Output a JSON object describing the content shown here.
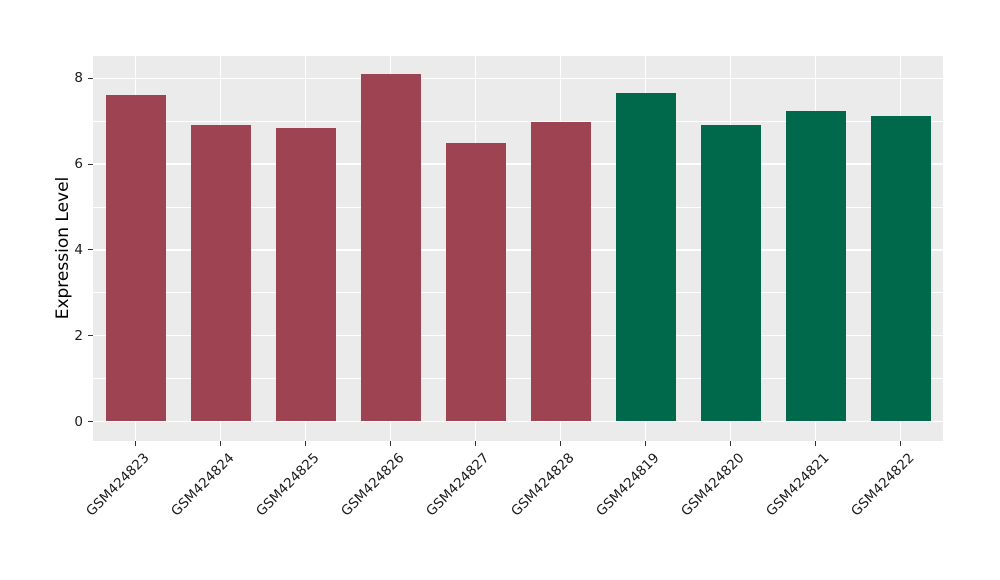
{
  "chart_data": {
    "type": "bar",
    "title": "",
    "xlabel": "",
    "ylabel": "Expression Level",
    "categories": [
      "GSM424823",
      "GSM424824",
      "GSM424825",
      "GSM424826",
      "GSM424827",
      "GSM424828",
      "GSM424819",
      "GSM424820",
      "GSM424821",
      "GSM424822"
    ],
    "values": [
      7.62,
      6.9,
      6.85,
      8.1,
      6.49,
      6.99,
      7.66,
      6.9,
      7.23,
      7.12
    ],
    "bar_colors": [
      "#9E4352",
      "#9E4352",
      "#9E4352",
      "#9E4352",
      "#9E4352",
      "#9E4352",
      "#00684B",
      "#00684B",
      "#00684B",
      "#00684B"
    ],
    "group_colors": {
      "left_group": "#9E4352",
      "right_group": "#00684B"
    },
    "ylim": [
      0,
      8.52
    ],
    "yticks": [
      0,
      2,
      4,
      6,
      8
    ],
    "yticks_minor": [
      1,
      3,
      5,
      7
    ],
    "grid": "on",
    "legend": "none",
    "x_label_rotation_deg": 45,
    "panel_bg": "#EBEBEB",
    "grid_color": "#FFFFFF",
    "tick_color": "#333333",
    "text_color": "#1a1a1a"
  }
}
